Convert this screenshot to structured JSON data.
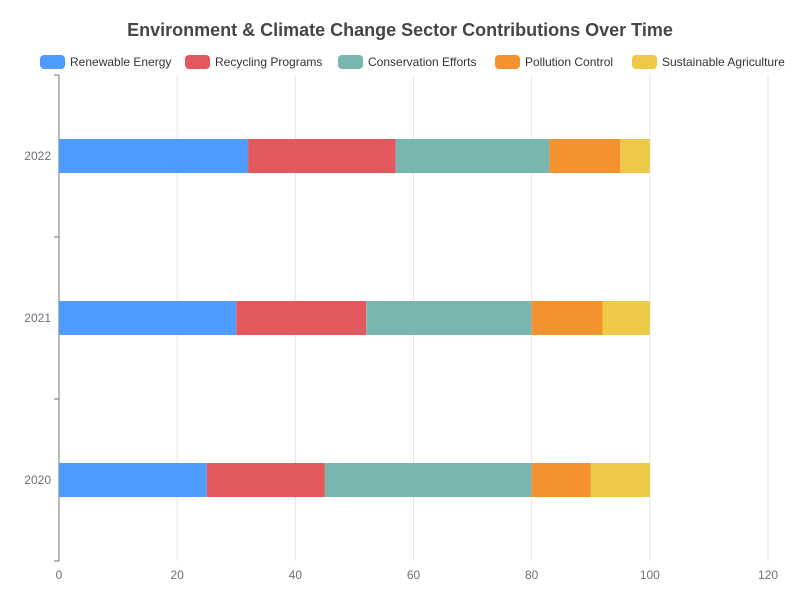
{
  "chart_data": {
    "type": "bar",
    "orientation": "horizontal",
    "stacked": true,
    "title": "Environment & Climate Change Sector Contributions Over Time",
    "categories": [
      "2020",
      "2021",
      "2022"
    ],
    "series": [
      {
        "name": "Renewable Energy",
        "color": "#4e9cff",
        "values": [
          25,
          30,
          32
        ]
      },
      {
        "name": "Recycling Programs",
        "color": "#e2595d",
        "values": [
          20,
          22,
          25
        ]
      },
      {
        "name": "Conservation Efforts",
        "color": "#78b6af",
        "values": [
          35,
          28,
          26
        ]
      },
      {
        "name": "Pollution Control",
        "color": "#f3922f",
        "values": [
          10,
          12,
          12
        ]
      },
      {
        "name": "Sustainable Agriculture",
        "color": "#edc947",
        "values": [
          10,
          8,
          5
        ]
      }
    ],
    "xlim": [
      0,
      120
    ],
    "xticks": [
      0,
      20,
      40,
      60,
      80,
      100,
      120
    ],
    "grid": "vertical",
    "legend_position": "top"
  }
}
